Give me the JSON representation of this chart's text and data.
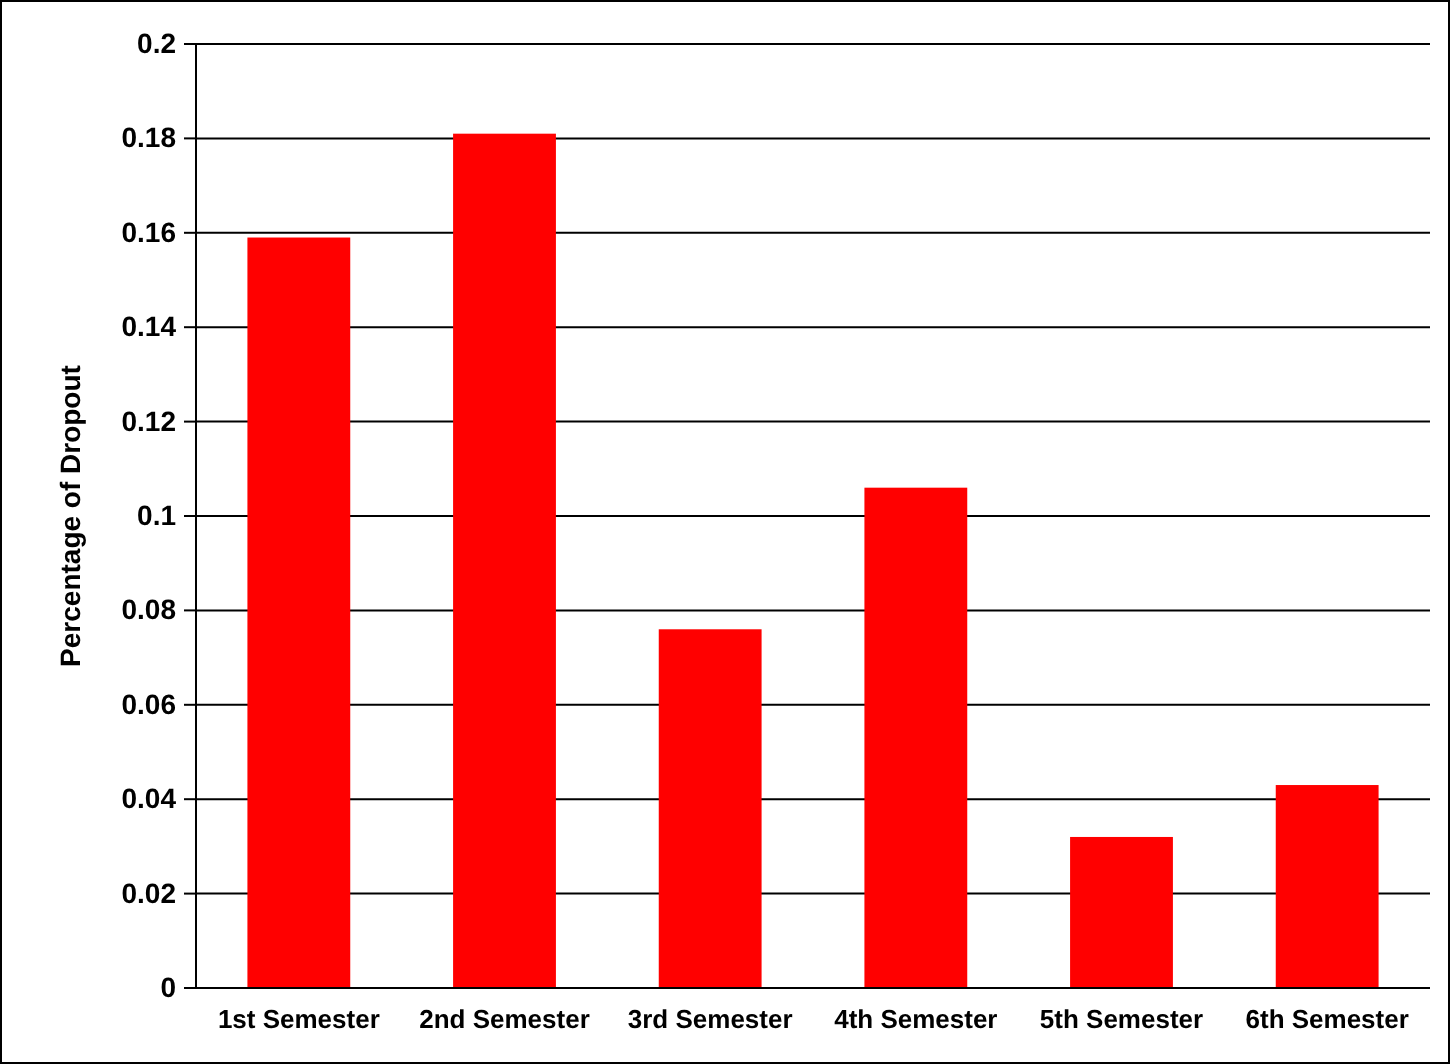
{
  "chart_data": {
    "type": "bar",
    "ylabel": "Percentage of Dropout",
    "categories": [
      "1st Semester",
      "2nd Semester",
      "3rd Semester",
      "4th Semester",
      "5th Semester",
      "6th Semester"
    ],
    "values": [
      0.159,
      0.181,
      0.076,
      0.106,
      0.032,
      0.043
    ],
    "color": "#ff0000",
    "ylim": [
      0,
      0.2
    ],
    "yticks": [
      0,
      0.02,
      0.04,
      0.06,
      0.08,
      0.1,
      0.12,
      0.14,
      0.16,
      0.18,
      0.2
    ],
    "grid": "y"
  }
}
